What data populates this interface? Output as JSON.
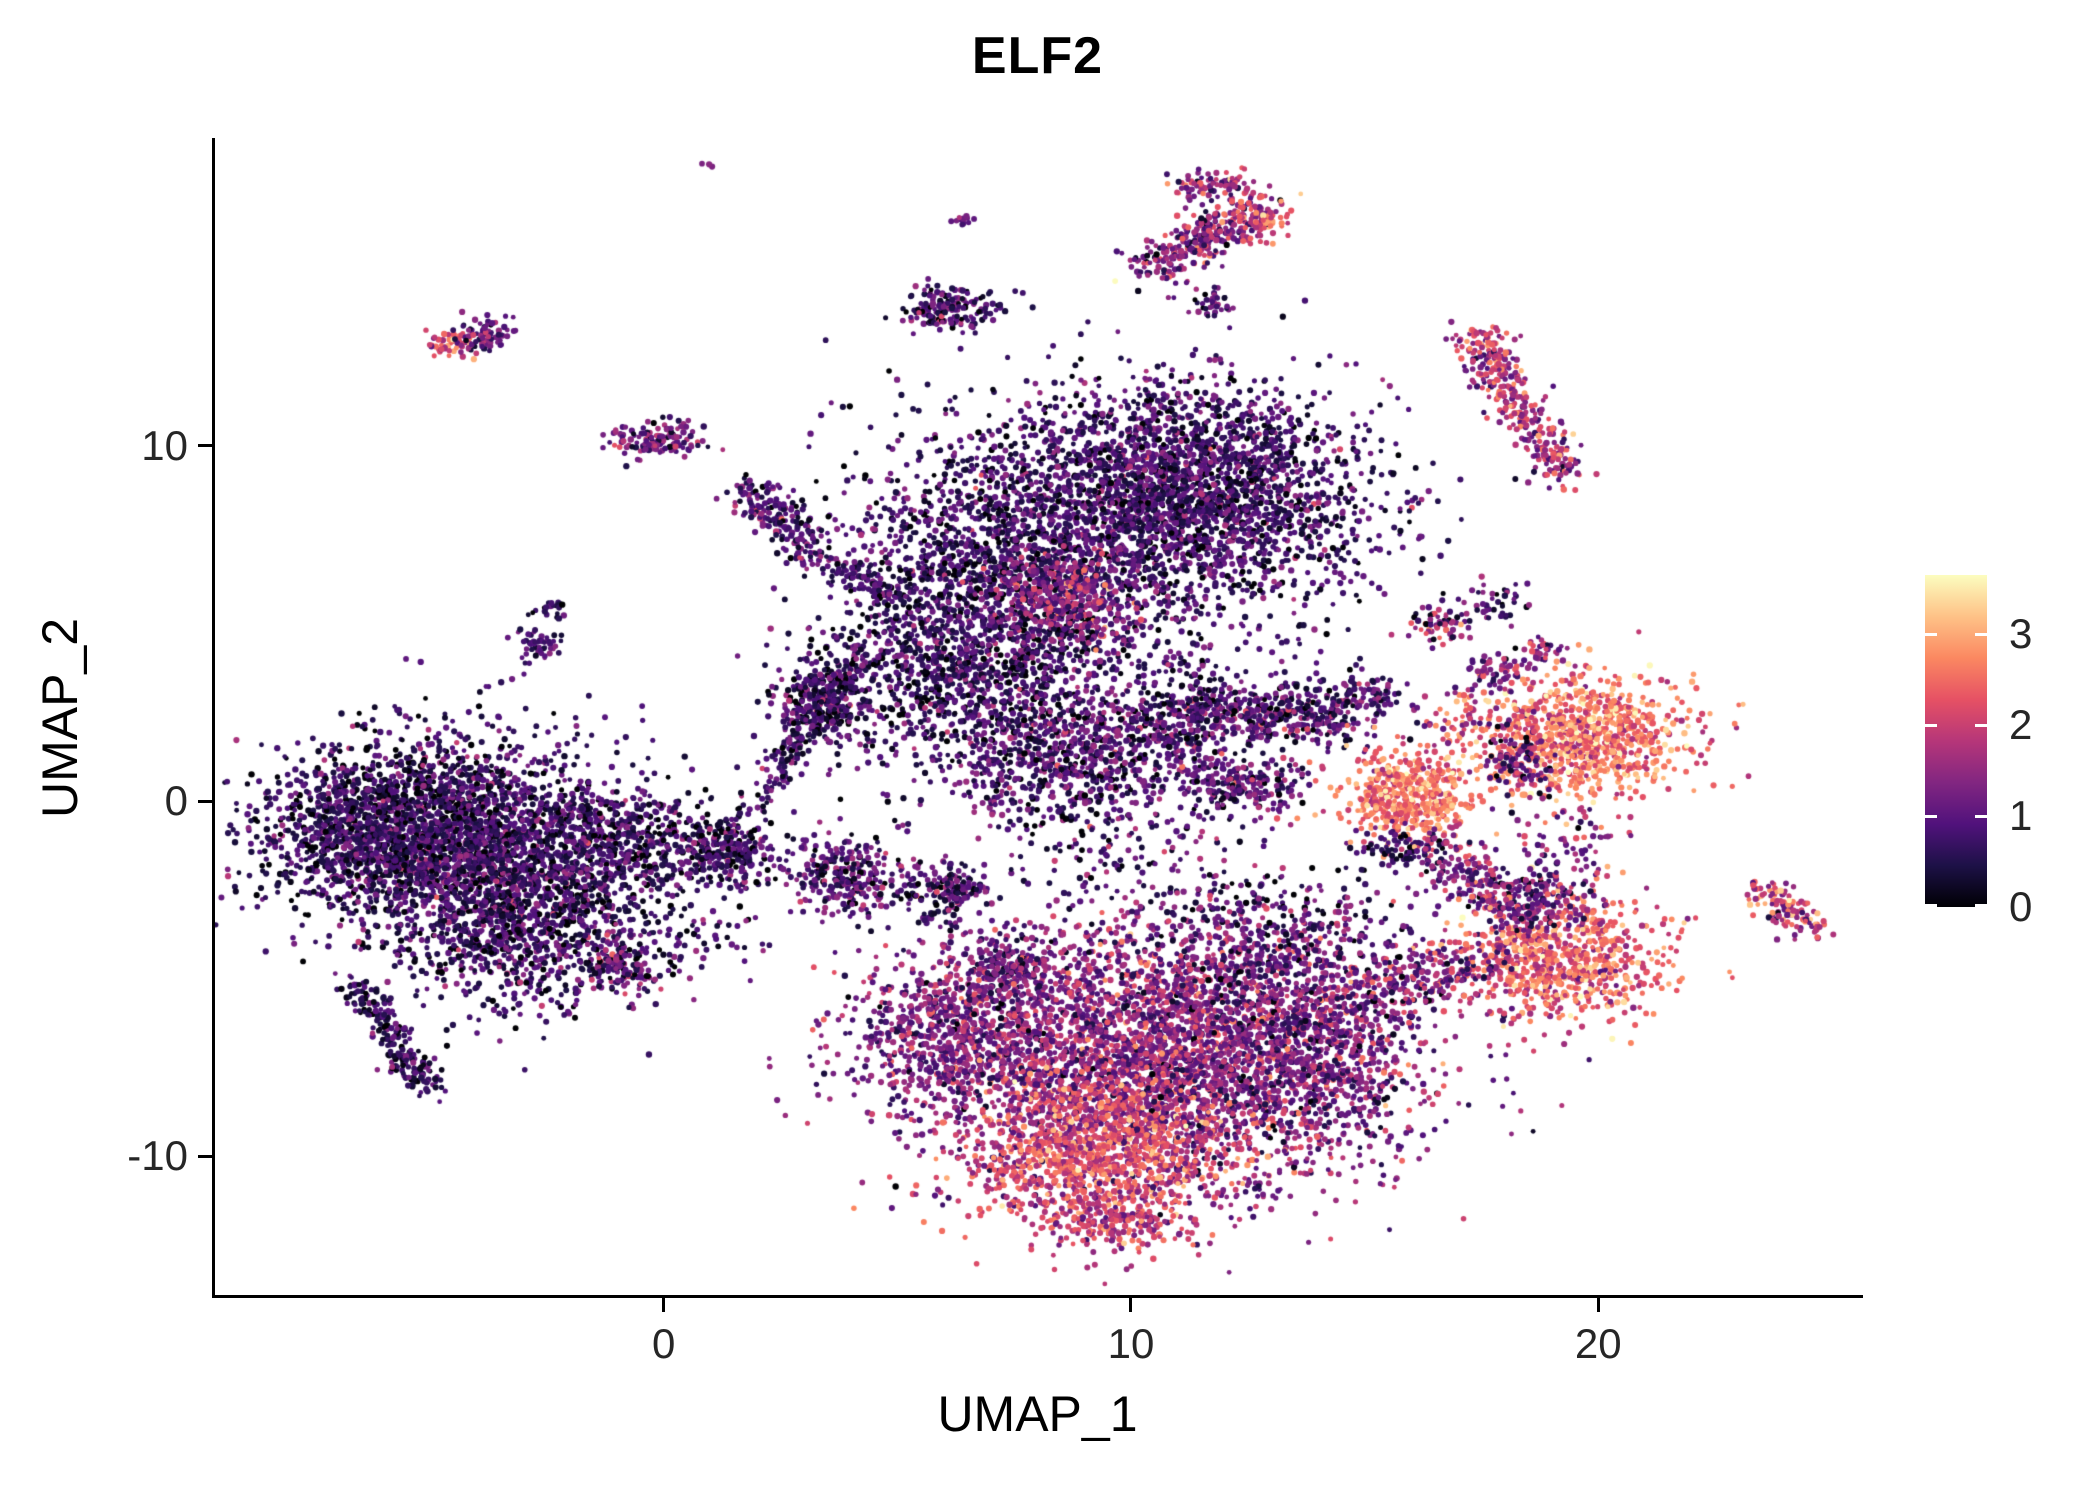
{
  "chart_data": {
    "type": "scatter",
    "title": "ELF2",
    "xlabel": "UMAP_1",
    "ylabel": "UMAP_2",
    "xlim": [
      -9.6,
      25.6
    ],
    "ylim": [
      -13.9,
      18.6
    ],
    "x_ticks": [
      0,
      10,
      20
    ],
    "y_ticks": [
      -10,
      0,
      10
    ],
    "grid": false,
    "legend_position": "right",
    "colorbar": {
      "ticks": [
        0,
        1,
        2,
        3
      ],
      "vmin": 0,
      "vmax": 3.65,
      "colormap": "magma",
      "stops": [
        "#000004",
        "#1D1147",
        "#51127C",
        "#822681",
        "#B63679",
        "#E65164",
        "#FB8861",
        "#FEC287",
        "#FCFDBF"
      ]
    },
    "point_radius_px": 2.8,
    "clusters": [
      {
        "cx": -4.6,
        "cy": -0.9,
        "sx": 1.7,
        "sy": 1.35,
        "n": 2400,
        "e": 0.65,
        "s": 0.45
      },
      {
        "cx": -3.0,
        "cy": -3.3,
        "sx": 1.3,
        "sy": 1.3,
        "n": 1100,
        "e": 0.7,
        "s": 0.5
      },
      {
        "cx": -6.6,
        "cy": -1.0,
        "sx": 1.0,
        "sy": 1.0,
        "n": 500,
        "e": 0.6,
        "s": 0.4
      },
      {
        "x1": -6.6,
        "y1": -5.2,
        "x2": -5.0,
        "y2": -8.2,
        "w": 0.22,
        "n": 220,
        "e": 0.6,
        "s": 0.4
      },
      {
        "cx": -0.9,
        "cy": -1.1,
        "sx": 1.0,
        "sy": 0.75,
        "n": 450,
        "e": 0.65,
        "s": 0.45
      },
      {
        "cx": 1.3,
        "cy": -1.4,
        "sx": 0.55,
        "sy": 0.5,
        "n": 280,
        "e": 0.7,
        "s": 0.5
      },
      {
        "x1": 1.9,
        "y1": -0.2,
        "x2": 4.4,
        "y2": 4.4,
        "w": 0.22,
        "n": 200,
        "e": 0.7,
        "s": 0.45
      },
      {
        "cx": 3.4,
        "cy": 2.7,
        "sx": 0.5,
        "sy": 0.55,
        "n": 300,
        "e": 0.7,
        "s": 0.5
      },
      {
        "cx": 0.3,
        "cy": -3.6,
        "sx": 1.2,
        "sy": 0.9,
        "n": 90,
        "e": 0.7,
        "s": 0.45
      },
      {
        "cx": -2.7,
        "cy": 4.4,
        "sx": 0.3,
        "sy": 0.22,
        "n": 50,
        "e": 0.8,
        "s": 0.4
      },
      {
        "cx": -2.4,
        "cy": 5.4,
        "sx": 0.2,
        "sy": 0.16,
        "n": 22,
        "e": 0.8,
        "s": 0.4
      },
      {
        "cx": -0.15,
        "cy": 10.2,
        "sx": 0.55,
        "sy": 0.26,
        "n": 130,
        "e": 1.1,
        "s": 0.5
      },
      {
        "cx": -4.55,
        "cy": 12.9,
        "sx": 0.28,
        "sy": 0.2,
        "n": 55,
        "e": 2.2,
        "s": 0.6
      },
      {
        "cx": -3.85,
        "cy": 13.1,
        "sx": 0.33,
        "sy": 0.22,
        "n": 75,
        "e": 1.0,
        "s": 0.5
      },
      {
        "x1": 1.7,
        "y1": 8.8,
        "x2": 3.4,
        "y2": 6.9,
        "w": 0.28,
        "n": 190,
        "e": 0.9,
        "s": 0.5
      },
      {
        "x1": 3.6,
        "y1": 6.6,
        "x2": 5.2,
        "y2": 5.7,
        "w": 0.22,
        "n": 110,
        "e": 0.8,
        "s": 0.45
      },
      {
        "cx": 11.2,
        "cy": 8.6,
        "sx": 1.9,
        "sy": 1.55,
        "n": 2800,
        "e": 0.75,
        "s": 0.45
      },
      {
        "cx": 7.2,
        "cy": 6.4,
        "sx": 1.6,
        "sy": 1.8,
        "n": 1600,
        "e": 0.65,
        "s": 0.45
      },
      {
        "cx": 6.2,
        "cy": 3.6,
        "sx": 1.4,
        "sy": 1.1,
        "n": 600,
        "e": 0.6,
        "s": 0.45
      },
      {
        "cx": 8.6,
        "cy": 5.7,
        "sx": 0.8,
        "sy": 0.6,
        "n": 350,
        "e": 1.5,
        "s": 0.5
      },
      {
        "cx": 9.8,
        "cy": 4.2,
        "sx": 2.2,
        "sy": 0.8,
        "n": 150,
        "e": 0.75,
        "s": 0.5
      },
      {
        "cx": 8.9,
        "cy": 1.4,
        "sx": 1.7,
        "sy": 0.95,
        "n": 1000,
        "e": 0.8,
        "s": 0.5
      },
      {
        "x1": 10.8,
        "y1": 2.6,
        "x2": 14.8,
        "y2": 2.3,
        "w": 0.45,
        "n": 520,
        "e": 0.9,
        "s": 0.55
      },
      {
        "cx": 15.2,
        "cy": 3.0,
        "sx": 0.32,
        "sy": 0.3,
        "n": 60,
        "e": 1.0,
        "s": 0.5
      },
      {
        "cx": 12.4,
        "cy": 0.4,
        "sx": 0.6,
        "sy": 0.45,
        "n": 200,
        "e": 0.9,
        "s": 0.5
      },
      {
        "cx": 9.6,
        "cy": -1.4,
        "sx": 1.5,
        "sy": 0.85,
        "n": 130,
        "e": 0.9,
        "s": 0.55
      },
      {
        "cx": 3.9,
        "cy": -2.1,
        "sx": 0.6,
        "sy": 0.55,
        "n": 280,
        "e": 0.9,
        "s": 0.55
      },
      {
        "cx": 6.0,
        "cy": -2.5,
        "sx": 0.5,
        "sy": 0.4,
        "n": 170,
        "e": 0.85,
        "s": 0.5
      },
      {
        "cx": 7.3,
        "cy": -4.7,
        "sx": 0.4,
        "sy": 0.35,
        "n": 110,
        "e": 1.0,
        "s": 0.55
      },
      {
        "cx": -0.9,
        "cy": -4.7,
        "sx": 0.5,
        "sy": 0.4,
        "n": 140,
        "e": 0.95,
        "s": 0.6
      },
      {
        "cx": 7.9,
        "cy": -4.4,
        "sx": 1.2,
        "sy": 0.7,
        "n": 110,
        "e": 1.1,
        "s": 0.55
      },
      {
        "cx": 10.6,
        "cy": -7.3,
        "sx": 2.5,
        "sy": 1.8,
        "n": 3300,
        "e": 1.45,
        "s": 0.55
      },
      {
        "cx": 9.3,
        "cy": -9.9,
        "sx": 1.4,
        "sy": 1.0,
        "n": 1000,
        "e": 2.25,
        "s": 0.5
      },
      {
        "cx": 6.2,
        "cy": -6.6,
        "sx": 1.2,
        "sy": 1.1,
        "n": 750,
        "e": 1.25,
        "s": 0.5
      },
      {
        "cx": 13.8,
        "cy": -6.8,
        "sx": 1.4,
        "sy": 1.5,
        "n": 850,
        "e": 1.15,
        "s": 0.55
      },
      {
        "cx": 12.8,
        "cy": -3.8,
        "sx": 1.7,
        "sy": 1.0,
        "n": 450,
        "e": 0.95,
        "s": 0.6
      },
      {
        "cx": 9.6,
        "cy": -11.8,
        "sx": 0.8,
        "sy": 0.5,
        "n": 200,
        "e": 1.9,
        "s": 0.5
      },
      {
        "cx": 15.9,
        "cy": 0.1,
        "sx": 0.7,
        "sy": 0.65,
        "n": 500,
        "e": 2.6,
        "s": 0.45
      },
      {
        "cx": 15.8,
        "cy": -1.4,
        "sx": 0.5,
        "sy": 0.35,
        "n": 80,
        "e": 0.6,
        "s": 0.4
      },
      {
        "cx": 19.6,
        "cy": 1.8,
        "sx": 1.15,
        "sy": 0.85,
        "n": 950,
        "e": 2.55,
        "s": 0.5
      },
      {
        "cx": 18.2,
        "cy": 1.2,
        "sx": 0.4,
        "sy": 0.5,
        "n": 100,
        "e": 1.0,
        "s": 0.6
      },
      {
        "cx": 17.9,
        "cy": 3.6,
        "sx": 0.35,
        "sy": 0.3,
        "n": 55,
        "e": 1.3,
        "s": 0.6
      },
      {
        "cx": 18.8,
        "cy": 4.2,
        "sx": 0.3,
        "sy": 0.2,
        "n": 35,
        "e": 1.6,
        "s": 0.6
      },
      {
        "cx": 17.8,
        "cy": 5.6,
        "sx": 0.45,
        "sy": 0.35,
        "n": 45,
        "e": 0.8,
        "s": 0.5
      },
      {
        "cx": 19.2,
        "cy": -4.4,
        "sx": 1.15,
        "sy": 0.85,
        "n": 800,
        "e": 2.35,
        "s": 0.55
      },
      {
        "cx": 18.7,
        "cy": -2.8,
        "sx": 0.6,
        "sy": 0.45,
        "n": 150,
        "e": 1.0,
        "s": 0.6
      },
      {
        "x1": 16.4,
        "y1": -1.2,
        "x2": 18.4,
        "y2": -3.2,
        "w": 0.35,
        "n": 210,
        "e": 1.3,
        "s": 0.6
      },
      {
        "x1": 15.3,
        "y1": -5.3,
        "x2": 17.6,
        "y2": -4.5,
        "w": 0.4,
        "n": 150,
        "e": 1.3,
        "s": 0.6
      },
      {
        "cx": 19.4,
        "cy": -1.2,
        "sx": 0.6,
        "sy": 0.8,
        "n": 80,
        "e": 1.6,
        "s": 0.7
      },
      {
        "cx": 17.0,
        "cy": 2.3,
        "sx": 0.6,
        "sy": 0.4,
        "n": 50,
        "e": 1.8,
        "s": 0.7
      },
      {
        "x1": 23.4,
        "y1": -2.4,
        "x2": 24.6,
        "y2": -3.6,
        "w": 0.24,
        "n": 110,
        "e": 2.0,
        "s": 0.6
      },
      {
        "x1": 17.4,
        "y1": 12.7,
        "x2": 19.3,
        "y2": 9.3,
        "w": 0.3,
        "n": 280,
        "e": 1.7,
        "s": 0.6
      },
      {
        "cx": 17.6,
        "cy": 12.9,
        "sx": 0.3,
        "sy": 0.25,
        "n": 60,
        "e": 2.0,
        "s": 0.5
      },
      {
        "x1": 10.3,
        "y1": 14.9,
        "x2": 12.7,
        "y2": 16.7,
        "w": 0.32,
        "n": 300,
        "e": 1.4,
        "s": 0.6
      },
      {
        "cx": 12.8,
        "cy": 16.4,
        "sx": 0.3,
        "sy": 0.3,
        "n": 70,
        "e": 2.3,
        "s": 0.5
      },
      {
        "x1": 11.1,
        "y1": 17.2,
        "x2": 12.4,
        "y2": 17.4,
        "w": 0.2,
        "n": 80,
        "e": 1.6,
        "s": 0.6
      },
      {
        "cx": 11.7,
        "cy": 14.0,
        "sx": 0.25,
        "sy": 0.3,
        "n": 40,
        "e": 0.9,
        "s": 0.5
      },
      {
        "cx": 6.2,
        "cy": 13.8,
        "sx": 0.55,
        "sy": 0.33,
        "n": 170,
        "e": 0.85,
        "s": 0.5
      },
      {
        "cx": 6.4,
        "cy": 16.4,
        "sx": 0.12,
        "sy": 0.12,
        "n": 12,
        "e": 1.2,
        "s": 0.4
      },
      {
        "cx": 16.6,
        "cy": 4.9,
        "sx": 0.35,
        "sy": 0.3,
        "n": 55,
        "e": 1.3,
        "s": 0.8
      },
      {
        "cx": 0.95,
        "cy": 17.9,
        "sx": 0.07,
        "sy": 0.07,
        "n": 3,
        "e": 1.1,
        "s": 0.3
      }
    ]
  }
}
